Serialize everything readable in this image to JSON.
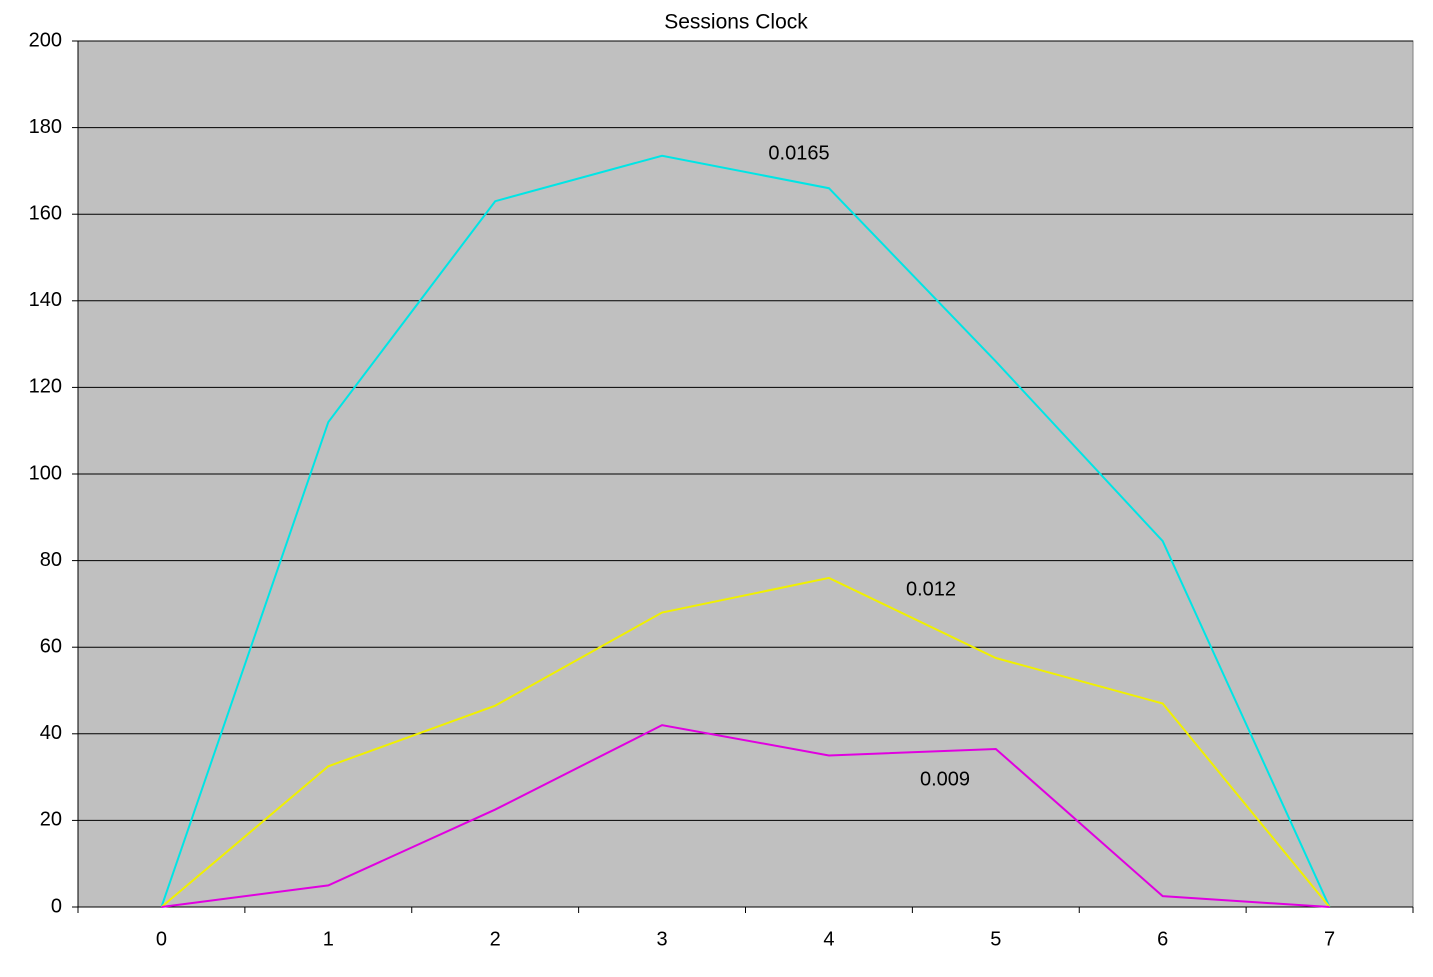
{
  "chart_data": {
    "type": "line",
    "title": "Sessions Clock",
    "categories": [
      "0",
      "1",
      "2",
      "3",
      "4",
      "5",
      "6",
      "7"
    ],
    "series": [
      {
        "color": "#00e5e5",
        "values": [
          0,
          112,
          163,
          173.5,
          166,
          126,
          84.5,
          0
        ]
      },
      {
        "color": "#f0f000",
        "values": [
          0,
          32.5,
          46.5,
          68,
          76,
          57.5,
          47,
          0
        ]
      },
      {
        "color": "#e000e0",
        "values": [
          0,
          5,
          22.5,
          42,
          35,
          36.5,
          2.5,
          0
        ]
      }
    ],
    "annotations": [
      "0.0165",
      "0.012",
      "0.009"
    ],
    "ylim": [
      0,
      200
    ],
    "yticks": [
      0,
      20,
      40,
      60,
      80,
      100,
      120,
      140,
      160,
      180,
      200
    ],
    "grid": true,
    "background": "#c0c0c0"
  }
}
